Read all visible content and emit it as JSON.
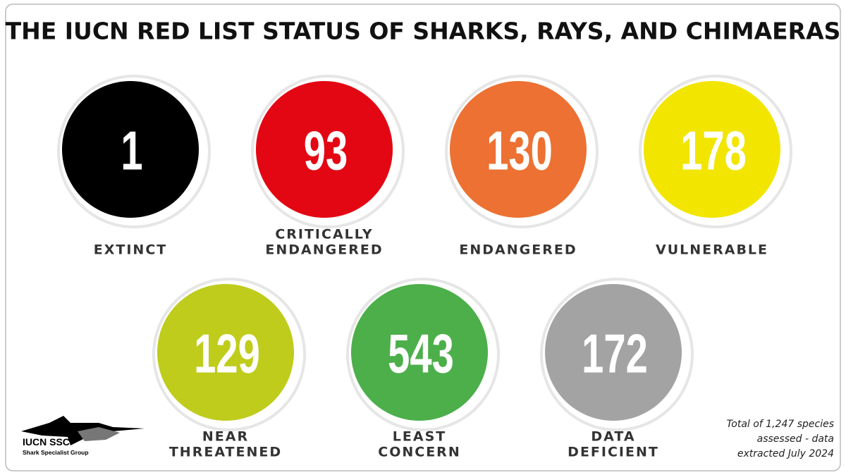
{
  "title": "THE IUCN RED LIST STATUS OF SHARKS, RAYS, AND CHIMAERAS",
  "statuses": [
    {
      "count": "1",
      "label": [
        "EXTINCT"
      ],
      "color": "#000000"
    },
    {
      "count": "93",
      "label": [
        "CRITICALLY",
        "ENDANGERED"
      ],
      "color": "#e30613"
    },
    {
      "count": "130",
      "label": [
        "ENDANGERED"
      ],
      "color": "#ec7133"
    },
    {
      "count": "178",
      "label": [
        "VULNERABLE"
      ],
      "color": "#f2e500"
    },
    {
      "count": "129",
      "label": [
        "NEAR",
        "THREATENED"
      ],
      "color": "#bfcc1c"
    },
    {
      "count": "543",
      "label": [
        "LEAST",
        "CONCERN"
      ],
      "color": "#4caf4a"
    },
    {
      "count": "172",
      "label": [
        "DATA",
        "DEFICIENT"
      ],
      "color": "#a3a3a3"
    }
  ],
  "logo": {
    "name": "IUCN SSC",
    "subtitle": "Shark Specialist Group"
  },
  "footnote": [
    "Total of 1,247 species",
    "assessed - data",
    "extracted July 2024"
  ]
}
